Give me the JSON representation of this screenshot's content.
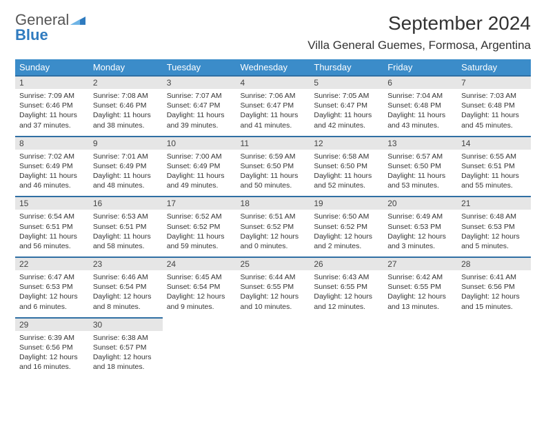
{
  "brand": {
    "line1": "General",
    "line2": "Blue"
  },
  "title": "September 2024",
  "location": "Villa General Guemes, Formosa, Argentina",
  "logo_color": "#2f7bbf",
  "header_bg": "#3b8cc9",
  "daynum_bg": "#e6e6e6",
  "daynum_border": "#2f6fa3",
  "weekdays": [
    "Sunday",
    "Monday",
    "Tuesday",
    "Wednesday",
    "Thursday",
    "Friday",
    "Saturday"
  ],
  "weeks": [
    [
      {
        "n": "1",
        "sr": "7:09 AM",
        "ss": "6:46 PM",
        "dl": "11 hours and 37 minutes."
      },
      {
        "n": "2",
        "sr": "7:08 AM",
        "ss": "6:46 PM",
        "dl": "11 hours and 38 minutes."
      },
      {
        "n": "3",
        "sr": "7:07 AM",
        "ss": "6:47 PM",
        "dl": "11 hours and 39 minutes."
      },
      {
        "n": "4",
        "sr": "7:06 AM",
        "ss": "6:47 PM",
        "dl": "11 hours and 41 minutes."
      },
      {
        "n": "5",
        "sr": "7:05 AM",
        "ss": "6:47 PM",
        "dl": "11 hours and 42 minutes."
      },
      {
        "n": "6",
        "sr": "7:04 AM",
        "ss": "6:48 PM",
        "dl": "11 hours and 43 minutes."
      },
      {
        "n": "7",
        "sr": "7:03 AM",
        "ss": "6:48 PM",
        "dl": "11 hours and 45 minutes."
      }
    ],
    [
      {
        "n": "8",
        "sr": "7:02 AM",
        "ss": "6:49 PM",
        "dl": "11 hours and 46 minutes."
      },
      {
        "n": "9",
        "sr": "7:01 AM",
        "ss": "6:49 PM",
        "dl": "11 hours and 48 minutes."
      },
      {
        "n": "10",
        "sr": "7:00 AM",
        "ss": "6:49 PM",
        "dl": "11 hours and 49 minutes."
      },
      {
        "n": "11",
        "sr": "6:59 AM",
        "ss": "6:50 PM",
        "dl": "11 hours and 50 minutes."
      },
      {
        "n": "12",
        "sr": "6:58 AM",
        "ss": "6:50 PM",
        "dl": "11 hours and 52 minutes."
      },
      {
        "n": "13",
        "sr": "6:57 AM",
        "ss": "6:50 PM",
        "dl": "11 hours and 53 minutes."
      },
      {
        "n": "14",
        "sr": "6:55 AM",
        "ss": "6:51 PM",
        "dl": "11 hours and 55 minutes."
      }
    ],
    [
      {
        "n": "15",
        "sr": "6:54 AM",
        "ss": "6:51 PM",
        "dl": "11 hours and 56 minutes."
      },
      {
        "n": "16",
        "sr": "6:53 AM",
        "ss": "6:51 PM",
        "dl": "11 hours and 58 minutes."
      },
      {
        "n": "17",
        "sr": "6:52 AM",
        "ss": "6:52 PM",
        "dl": "11 hours and 59 minutes."
      },
      {
        "n": "18",
        "sr": "6:51 AM",
        "ss": "6:52 PM",
        "dl": "12 hours and 0 minutes."
      },
      {
        "n": "19",
        "sr": "6:50 AM",
        "ss": "6:52 PM",
        "dl": "12 hours and 2 minutes."
      },
      {
        "n": "20",
        "sr": "6:49 AM",
        "ss": "6:53 PM",
        "dl": "12 hours and 3 minutes."
      },
      {
        "n": "21",
        "sr": "6:48 AM",
        "ss": "6:53 PM",
        "dl": "12 hours and 5 minutes."
      }
    ],
    [
      {
        "n": "22",
        "sr": "6:47 AM",
        "ss": "6:53 PM",
        "dl": "12 hours and 6 minutes."
      },
      {
        "n": "23",
        "sr": "6:46 AM",
        "ss": "6:54 PM",
        "dl": "12 hours and 8 minutes."
      },
      {
        "n": "24",
        "sr": "6:45 AM",
        "ss": "6:54 PM",
        "dl": "12 hours and 9 minutes."
      },
      {
        "n": "25",
        "sr": "6:44 AM",
        "ss": "6:55 PM",
        "dl": "12 hours and 10 minutes."
      },
      {
        "n": "26",
        "sr": "6:43 AM",
        "ss": "6:55 PM",
        "dl": "12 hours and 12 minutes."
      },
      {
        "n": "27",
        "sr": "6:42 AM",
        "ss": "6:55 PM",
        "dl": "12 hours and 13 minutes."
      },
      {
        "n": "28",
        "sr": "6:41 AM",
        "ss": "6:56 PM",
        "dl": "12 hours and 15 minutes."
      }
    ],
    [
      {
        "n": "29",
        "sr": "6:39 AM",
        "ss": "6:56 PM",
        "dl": "12 hours and 16 minutes."
      },
      {
        "n": "30",
        "sr": "6:38 AM",
        "ss": "6:57 PM",
        "dl": "12 hours and 18 minutes."
      },
      null,
      null,
      null,
      null,
      null
    ]
  ],
  "labels": {
    "sunrise": "Sunrise:",
    "sunset": "Sunset:",
    "daylight": "Daylight:"
  }
}
